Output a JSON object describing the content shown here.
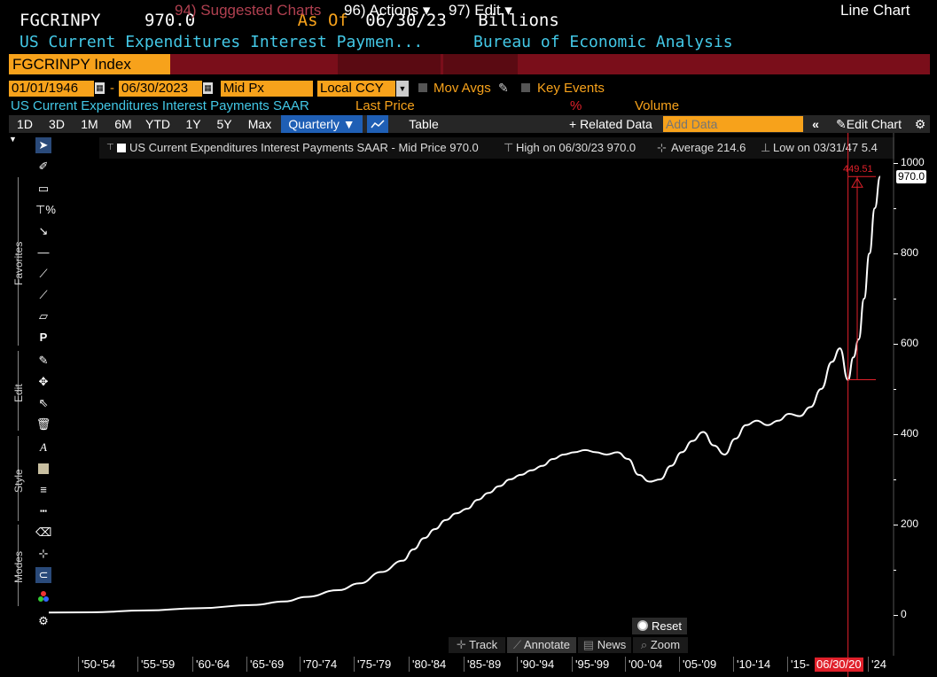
{
  "header": {
    "ticker": "FGCRINPY",
    "last_value": "970.0",
    "as_of_label": "As Of",
    "as_of_date": "06/30/23",
    "units": "Billions",
    "description": "US Current Expenditures Interest Paymen...",
    "source": "Bureau of Economic Analysis"
  },
  "menubar": {
    "ticker_field": "FGCRINPY Index",
    "suggested": "94) Suggested Charts",
    "actions": "96) Actions ▾",
    "edit": "97) Edit ▾",
    "chart_type": "Line Chart"
  },
  "controls": {
    "start_date": "01/01/1946",
    "dash": "-",
    "end_date": "06/30/2023",
    "price_field": "Mid Px",
    "currency": "Local CCY",
    "mov_avgs": "Mov Avgs",
    "key_events": "Key Events"
  },
  "series_row": {
    "series_name": "US Current Expenditures Interest Payments SAAR",
    "last_price": "Last Price",
    "percent": "%",
    "volume": "Volume"
  },
  "toolbar": {
    "ranges": [
      "1D",
      "3D",
      "1M",
      "6M",
      "YTD",
      "1Y",
      "5Y",
      "Max"
    ],
    "frequency": "Quarterly ▼",
    "table": "Table",
    "related": "+ Related Data",
    "add_data_placeholder": "Add Data",
    "edit_chart": "Edit Chart"
  },
  "side_labels": {
    "favorites": "Favorites",
    "edit": "Edit",
    "style": "Style",
    "modes": "Modes"
  },
  "legend": {
    "series": "US Current Expenditures Interest Payments SAAR - Mid Price 970.0",
    "high": "High on 06/30/23 970.0",
    "average": "Average 214.6",
    "low": "Low on 03/31/47 5.4"
  },
  "annotation": {
    "delta_value": "449.51",
    "last_marker": "970.0",
    "date_marker": "06/30/20"
  },
  "bottom": {
    "reset": "Reset",
    "track": "Track",
    "annotate": "Annotate",
    "news": "News",
    "zoom": "Zoom"
  },
  "colors": {
    "accent_orange": "#f7a21b",
    "header_blue": "#43c8e6",
    "menubar_red": "#7a0e1a",
    "annotation_red": "#e0202a",
    "line": "#ffffff",
    "background": "#000000"
  },
  "chart_data": {
    "type": "line",
    "title": "",
    "xlabel": "",
    "ylabel": "",
    "y_axis_side": "right",
    "ylim": [
      0,
      1000
    ],
    "yticks": [
      0,
      200,
      400,
      600,
      800,
      1000
    ],
    "x_tick_labels": [
      "'50-'54",
      "'55-'59",
      "'60-'64",
      "'65-'69",
      "'70-'74",
      "'75-'79",
      "'80-'84",
      "'85-'89",
      "'90-'94",
      "'95-'99",
      "'00-'04",
      "'05-'09",
      "'10-'14",
      "'15-",
      "'24"
    ],
    "series": [
      {
        "name": "US Current Expenditures Interest Payments SAAR",
        "x": [
          1946,
          1950,
          1955,
          1960,
          1965,
          1968,
          1970,
          1973,
          1975,
          1977,
          1979,
          1980,
          1981,
          1982,
          1983,
          1984,
          1985,
          1986,
          1987,
          1988,
          1989,
          1990,
          1991,
          1992,
          1993,
          1994,
          1995,
          1996,
          1997,
          1998,
          1999,
          2000,
          2001,
          2002,
          2003,
          2004,
          2005,
          2006,
          2007,
          2008,
          2009,
          2010,
          2011,
          2012,
          2013,
          2014,
          2015,
          2016,
          2017,
          2018,
          2019,
          2019.75,
          2020.5,
          2021,
          2021.5,
          2022,
          2022.5,
          2023,
          2023.5
        ],
        "y": [
          5.4,
          6,
          10,
          15,
          22,
          30,
          40,
          55,
          70,
          95,
          120,
          145,
          170,
          190,
          210,
          225,
          235,
          255,
          270,
          285,
          300,
          310,
          320,
          330,
          345,
          355,
          360,
          365,
          360,
          355,
          360,
          345,
          310,
          295,
          300,
          330,
          360,
          385,
          405,
          375,
          355,
          390,
          420,
          430,
          420,
          430,
          445,
          440,
          460,
          500,
          560,
          590,
          520,
          570,
          610,
          700,
          800,
          900,
          970
        ]
      }
    ],
    "annotations": [
      {
        "type": "delta",
        "from_date": "06/30/20",
        "from_value": 520.5,
        "to_value": 970.0,
        "label": "449.51"
      },
      {
        "type": "last_value",
        "value": 970.0,
        "label": "970.0"
      }
    ],
    "legend_stats": {
      "high": 970.0,
      "high_date": "06/30/23",
      "average": 214.6,
      "low": 5.4,
      "low_date": "03/31/47"
    }
  }
}
